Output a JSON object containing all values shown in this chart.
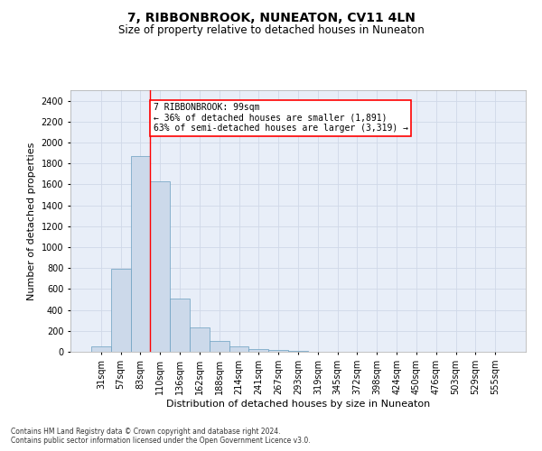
{
  "title": "7, RIBBONBROOK, NUNEATON, CV11 4LN",
  "subtitle": "Size of property relative to detached houses in Nuneaton",
  "xlabel": "Distribution of detached houses by size in Nuneaton",
  "ylabel": "Number of detached properties",
  "categories": [
    "31sqm",
    "57sqm",
    "83sqm",
    "110sqm",
    "136sqm",
    "162sqm",
    "188sqm",
    "214sqm",
    "241sqm",
    "267sqm",
    "293sqm",
    "319sqm",
    "345sqm",
    "372sqm",
    "398sqm",
    "424sqm",
    "450sqm",
    "476sqm",
    "503sqm",
    "529sqm",
    "555sqm"
  ],
  "values": [
    50,
    790,
    1870,
    1630,
    510,
    235,
    100,
    50,
    25,
    15,
    8,
    4,
    2,
    1,
    1,
    0,
    0,
    0,
    0,
    0,
    0
  ],
  "bar_color": "#ccd9ea",
  "bar_edge_color": "#6a9fc0",
  "red_line_x": 2.5,
  "annotation_text": "7 RIBBONBROOK: 99sqm\n← 36% of detached houses are smaller (1,891)\n63% of semi-detached houses are larger (3,319) →",
  "annotation_box_color": "white",
  "annotation_box_edge_color": "red",
  "ylim": [
    0,
    2500
  ],
  "yticks": [
    0,
    200,
    400,
    600,
    800,
    1000,
    1200,
    1400,
    1600,
    1800,
    2000,
    2200,
    2400
  ],
  "grid_color": "#d0d8e8",
  "bg_color": "#e8eef8",
  "footer_line1": "Contains HM Land Registry data © Crown copyright and database right 2024.",
  "footer_line2": "Contains public sector information licensed under the Open Government Licence v3.0.",
  "title_fontsize": 10,
  "subtitle_fontsize": 8.5,
  "ylabel_fontsize": 8,
  "xlabel_fontsize": 8,
  "tick_fontsize": 7,
  "annotation_fontsize": 7,
  "footer_fontsize": 5.5
}
